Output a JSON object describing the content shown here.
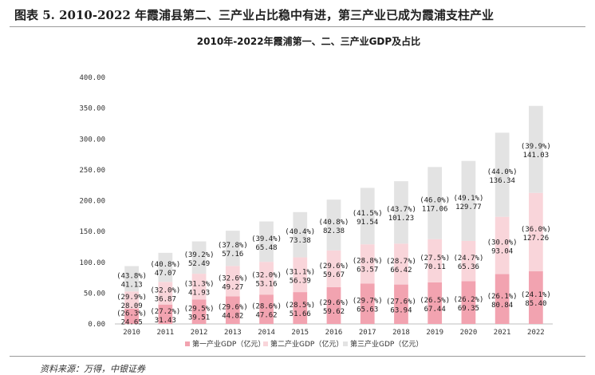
{
  "figure": {
    "title": "图表 5. 2010-2022 年霞浦县第二、三产业占比稳中有进，第三产业已成为霞浦支柱产业",
    "source": "资料来源：万得，中银证券"
  },
  "chart_data": {
    "type": "bar",
    "stacked": true,
    "title": "2010年-2022年霞浦第一、二、三产业GDP及占比",
    "categories": [
      "2010",
      "2011",
      "2012",
      "2013",
      "2014",
      "2015",
      "2016",
      "2017",
      "2018",
      "2019",
      "2020",
      "2021",
      "2022"
    ],
    "ylim": [
      0,
      400
    ],
    "yticks": [
      "0.00",
      "50.00",
      "100.00",
      "150.00",
      "200.00",
      "250.00",
      "300.00",
      "350.00",
      "400.00"
    ],
    "legend_position": "bottom",
    "grid": false,
    "series": [
      {
        "name": "第一产业GDP（亿元）",
        "color": "#f2a3b0",
        "values": [
          24.65,
          31.43,
          39.51,
          44.82,
          47.62,
          51.66,
          59.62,
          65.63,
          63.94,
          67.44,
          69.35,
          80.84,
          85.4
        ],
        "value_labels": [
          "24.65",
          "31.43",
          "39.51",
          "44.82",
          "47.62",
          "51.66",
          "59.62",
          "65.63",
          "63.94",
          "67.44",
          "69.35",
          "80.84",
          "85.40"
        ],
        "share_labels": [
          "(26.3%)",
          "(27.2%)",
          "(29.5%)",
          "(29.6%)",
          "(28.6%)",
          "(28.5%)",
          "(29.6%)",
          "(29.7%)",
          "(27.6%)",
          "(26.5%)",
          "(26.2%)",
          "(26.1%)",
          "(24.1%)"
        ]
      },
      {
        "name": "第二产业GDP（亿元）",
        "color": "#f9d5da",
        "values": [
          28.09,
          36.87,
          41.93,
          49.27,
          53.16,
          56.39,
          59.67,
          63.57,
          66.42,
          70.11,
          65.36,
          93.04,
          127.26
        ],
        "value_labels": [
          "28.09",
          "36.87",
          "41.93",
          "49.27",
          "53.16",
          "56.39",
          "59.67",
          "63.57",
          "66.42",
          "70.11",
          "65.36",
          "93.04",
          "127.26"
        ],
        "share_labels": [
          "(29.9%)",
          "(32.0%)",
          "(31.3%)",
          "(32.6%)",
          "(32.0%)",
          "(31.1%)",
          "(29.6%)",
          "(28.8%)",
          "(28.7%)",
          "(27.5%)",
          "(24.7%)",
          "(30.0%)",
          "(36.0%)"
        ]
      },
      {
        "name": "第三产业GDP（亿元）",
        "color": "#e3e3e3",
        "values": [
          41.13,
          47.07,
          52.49,
          57.16,
          65.48,
          73.38,
          82.38,
          91.54,
          101.23,
          117.06,
          129.77,
          136.34,
          141.03
        ],
        "value_labels": [
          "41.13",
          "47.07",
          "52.49",
          "57.16",
          "65.48",
          "73.38",
          "82.38",
          "91.54",
          "101.23",
          "117.06",
          "129.77",
          "136.34",
          "141.03"
        ],
        "share_labels": [
          "(43.8%)",
          "(40.8%)",
          "(39.2%)",
          "(37.8%)",
          "(39.4%)",
          "(40.4%)",
          "(40.8%)",
          "(41.5%)",
          "(43.7%)",
          "(46.0%)",
          "(49.1%)",
          "(44.0%)",
          "(39.9%)"
        ]
      }
    ]
  }
}
